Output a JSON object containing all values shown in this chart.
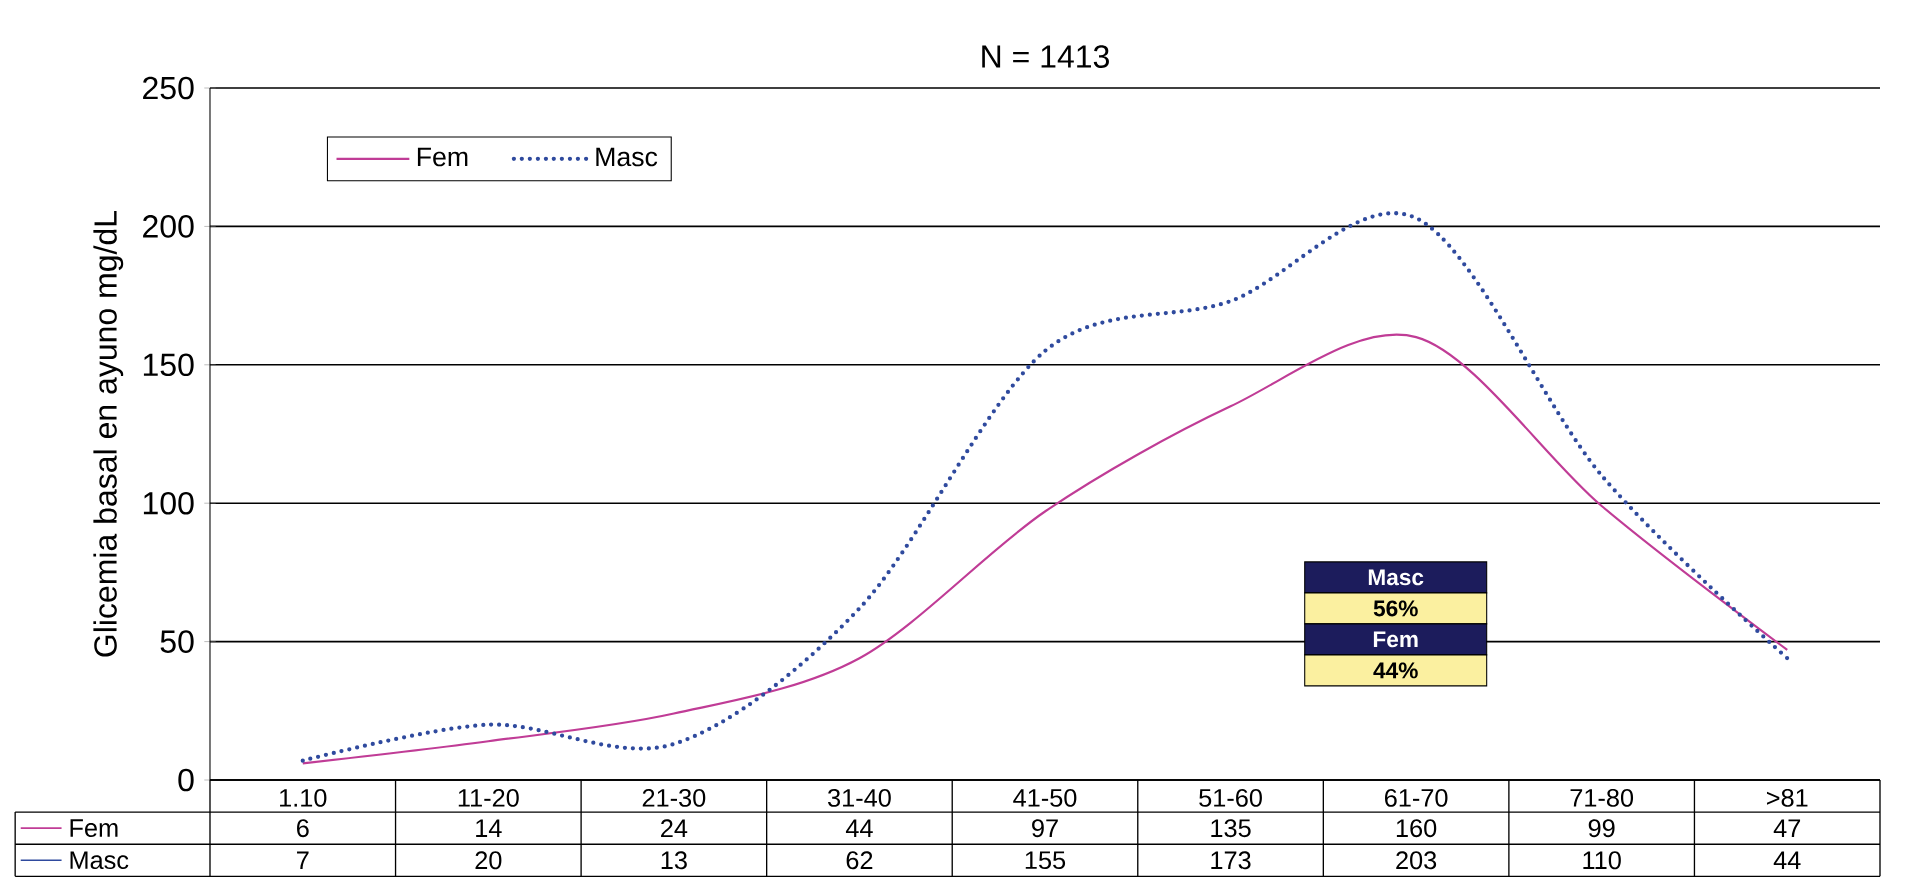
{
  "chart_data": {
    "type": "line",
    "title": "N = 1413",
    "ylabel": "Glicemia basal en ayuno mg/dL",
    "categories": [
      "1.10",
      "11-20",
      "21-30",
      "31-40",
      "41-50",
      "51-60",
      "61-70",
      "71-80",
      ">81"
    ],
    "series": [
      {
        "name": "Fem",
        "color": "#c03c96",
        "line_style": "solid",
        "values": [
          6,
          14,
          24,
          44,
          97,
          135,
          160,
          99,
          47
        ]
      },
      {
        "name": "Masc",
        "color": "#2f4a9e",
        "line_style": "dotted",
        "values": [
          7,
          20,
          13,
          62,
          155,
          173,
          203,
          110,
          44
        ]
      }
    ],
    "ylim": [
      0,
      250
    ],
    "yticks": [
      0,
      50,
      100,
      150,
      200,
      250
    ],
    "grid": "y",
    "legend": "top left",
    "data_labels": true,
    "annotations": [
      "Masc",
      "56%",
      "Fem",
      "44%"
    ]
  }
}
